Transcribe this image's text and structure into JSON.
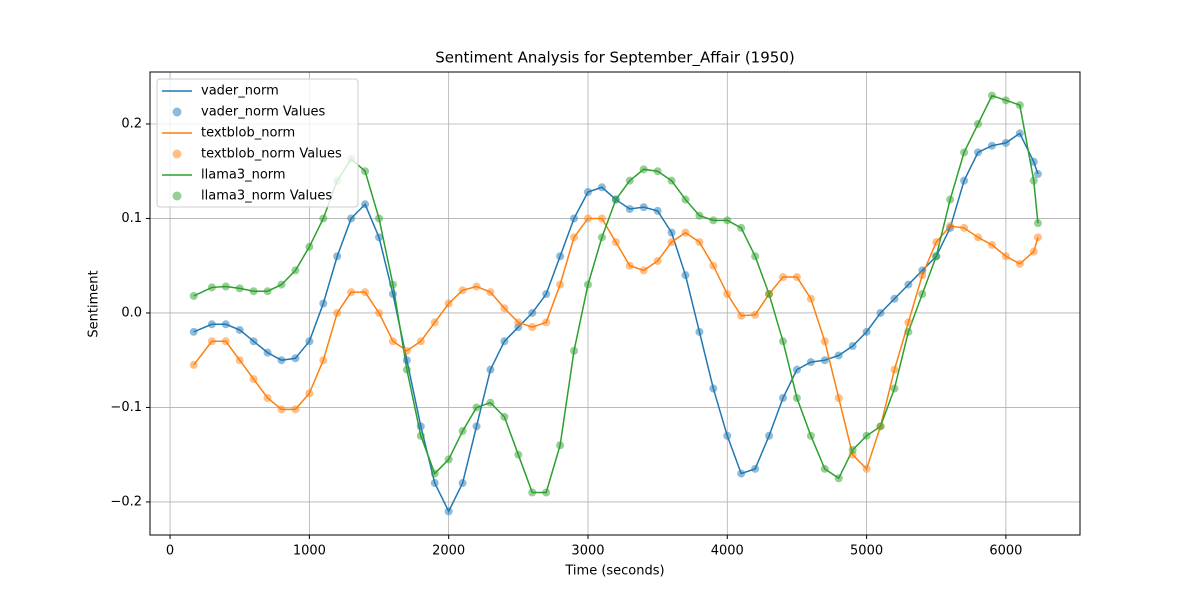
{
  "chart_data": {
    "type": "line",
    "title": "Sentiment Analysis for September_Affair (1950)",
    "x_label": "Time (seconds)",
    "y_label": "Sentiment",
    "x": [
      170,
      300,
      400,
      500,
      600,
      700,
      800,
      900,
      1000,
      1100,
      1200,
      1300,
      1400,
      1500,
      1600,
      1700,
      1800,
      1900,
      2000,
      2100,
      2200,
      2300,
      2400,
      2500,
      2600,
      2700,
      2800,
      2900,
      3000,
      3100,
      3200,
      3300,
      3400,
      3500,
      3600,
      3700,
      3800,
      3900,
      4000,
      4100,
      4200,
      4300,
      4400,
      4500,
      4600,
      4700,
      4800,
      4900,
      5000,
      5100,
      5200,
      5300,
      5400,
      5500,
      5600,
      5700,
      5800,
      5900,
      6000,
      6100,
      6200,
      6230
    ],
    "series": [
      {
        "name": "vader_norm",
        "scatter_label": "vader_norm Values",
        "color": "#1f77b4",
        "values": [
          -0.02,
          -0.012,
          -0.012,
          -0.018,
          -0.03,
          -0.042,
          -0.05,
          -0.048,
          -0.03,
          0.01,
          0.06,
          0.1,
          0.115,
          0.08,
          0.02,
          -0.05,
          -0.12,
          -0.18,
          -0.21,
          -0.18,
          -0.12,
          -0.06,
          -0.03,
          -0.015,
          0,
          0.02,
          0.06,
          0.1,
          0.128,
          0.133,
          0.12,
          0.11,
          0.112,
          0.108,
          0.085,
          0.04,
          -0.02,
          -0.08,
          -0.13,
          -0.17,
          -0.165,
          -0.13,
          -0.09,
          -0.06,
          -0.052,
          -0.05,
          -0.045,
          -0.035,
          -0.02,
          0,
          0.015,
          0.03,
          0.045,
          0.06,
          0.09,
          0.14,
          0.17,
          0.177,
          0.18,
          0.19,
          0.16,
          0.147
        ]
      },
      {
        "name": "textblob_norm",
        "scatter_label": "textblob_norm Values",
        "color": "#ff7f0e",
        "values": [
          -0.055,
          -0.03,
          -0.03,
          -0.05,
          -0.07,
          -0.09,
          -0.102,
          -0.102,
          -0.085,
          -0.05,
          0,
          0.022,
          0.022,
          0,
          -0.03,
          -0.04,
          -0.03,
          -0.01,
          0.01,
          0.024,
          0.028,
          0.022,
          0.005,
          -0.01,
          -0.015,
          -0.01,
          0.03,
          0.08,
          0.1,
          0.1,
          0.075,
          0.05,
          0.045,
          0.055,
          0.075,
          0.085,
          0.075,
          0.05,
          0.02,
          -0.003,
          -0.002,
          0.02,
          0.038,
          0.038,
          0.015,
          -0.03,
          -0.09,
          -0.15,
          -0.165,
          -0.12,
          -0.06,
          -0.01,
          0.04,
          0.075,
          0.092,
          0.09,
          0.08,
          0.072,
          0.06,
          0.052,
          0.065,
          0.08
        ]
      },
      {
        "name": "llama3_norm",
        "scatter_label": "llama3_norm Values",
        "color": "#2ca02c",
        "values": [
          0.018,
          0.027,
          0.028,
          0.026,
          0.023,
          0.023,
          0.03,
          0.045,
          0.07,
          0.1,
          0.14,
          0.163,
          0.15,
          0.1,
          0.03,
          -0.06,
          -0.13,
          -0.17,
          -0.155,
          -0.125,
          -0.1,
          -0.095,
          -0.11,
          -0.15,
          -0.19,
          -0.19,
          -0.14,
          -0.04,
          0.03,
          0.08,
          0.12,
          0.14,
          0.152,
          0.15,
          0.14,
          0.12,
          0.103,
          0.098,
          0.098,
          0.09,
          0.06,
          0.02,
          -0.03,
          -0.09,
          -0.13,
          -0.165,
          -0.175,
          -0.145,
          -0.13,
          -0.12,
          -0.08,
          -0.02,
          0.02,
          0.06,
          0.12,
          0.17,
          0.2,
          0.23,
          0.225,
          0.22,
          0.14,
          0.095
        ]
      }
    ],
    "xlim": [
      -144,
      6532
    ],
    "ylim": [
      -0.235,
      0.255
    ],
    "xticks": [
      0,
      1000,
      2000,
      3000,
      4000,
      5000,
      6000
    ],
    "yticks": [
      {
        "value": -0.2,
        "label": "−0.2"
      },
      {
        "value": -0.1,
        "label": "−0.1"
      },
      {
        "value": 0,
        "label": "0.0"
      },
      0.1,
      0.2
    ],
    "grid": true,
    "legend": "upper left"
  }
}
